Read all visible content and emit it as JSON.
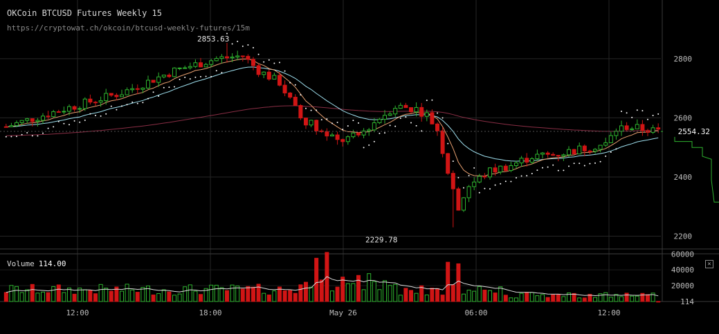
{
  "header": {
    "title": "OKCoin BTCUSD Futures Weekly 15",
    "url": "https://cryptowat.ch/okcoin/btcusd-weekly-futures/15m"
  },
  "volume_panel": {
    "label": "Volume",
    "current": "114.00",
    "close_icon": "close-icon"
  },
  "colors": {
    "up": "#2fb52f",
    "down": "#d01515",
    "grid": "#262626",
    "ema_fast": "#e8a070",
    "ema_slow": "#9fe0ef",
    "ma_long": "#8a2e45",
    "sar": "#ffffff",
    "volume_ma": "#dddddd"
  },
  "chart_data": {
    "type": "candlestick",
    "title": "OKCoin BTCUSD Futures Weekly 15",
    "price_axis": {
      "ticks": [
        2200,
        2400,
        2600,
        2800
      ],
      "range": [
        2180,
        2870
      ]
    },
    "volume_axis": {
      "ticks": [
        "114",
        "20000",
        "40000",
        "60000"
      ],
      "range": [
        0,
        62000
      ]
    },
    "time_axis": {
      "labels": [
        "12:00",
        "18:00",
        "May 26",
        "06:00",
        "12:00"
      ],
      "positions_hours": [
        12,
        18,
        24,
        30,
        36
      ]
    },
    "current_price": "2554.32",
    "annotations": [
      {
        "text": "2853.63",
        "hour": 17.75,
        "value": 2853.63
      },
      {
        "text": "2229.78",
        "hour": 28.0,
        "value": 2229.78
      }
    ],
    "candles": [],
    "volumes": []
  }
}
